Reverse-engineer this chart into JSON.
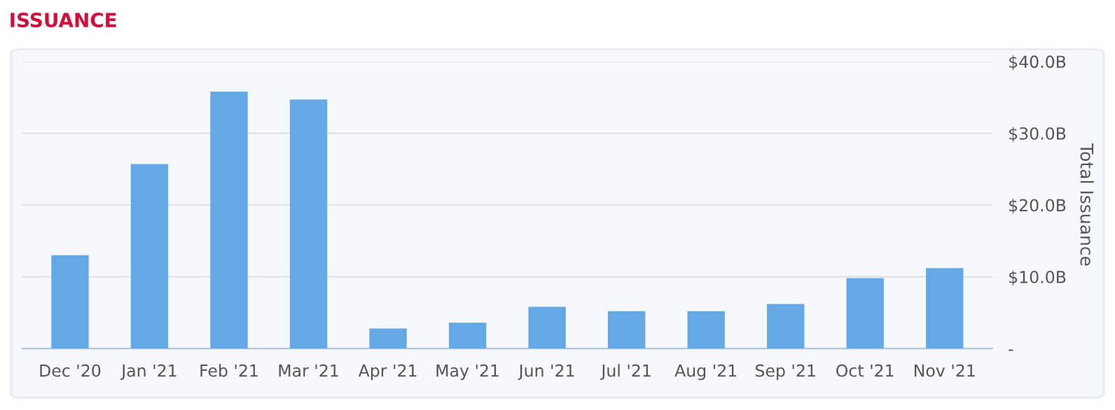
{
  "chart_data": {
    "type": "bar",
    "title": "ISSUANCE",
    "ylabel": "Total Issuance",
    "categories": [
      "Dec '20",
      "Jan '21",
      "Feb '21",
      "Mar '21",
      "Apr '21",
      "May '21",
      "Jun '21",
      "Jul '21",
      "Aug '21",
      "Sep '21",
      "Oct '21",
      "Nov '21"
    ],
    "values": [
      13.0,
      25.7,
      35.8,
      34.7,
      2.8,
      3.6,
      5.8,
      5.2,
      5.2,
      6.2,
      9.8,
      11.2
    ],
    "color": "#64a9e6",
    "ylim": [
      0,
      40
    ],
    "yticks": [
      {
        "value": 0,
        "label": "-"
      },
      {
        "value": 10,
        "label": "$10.0B"
      },
      {
        "value": 20,
        "label": "$20.0B"
      },
      {
        "value": 30,
        "label": "$30.0B"
      },
      {
        "value": 40,
        "label": "$40.0B"
      }
    ],
    "grid": "y",
    "legend": false
  }
}
